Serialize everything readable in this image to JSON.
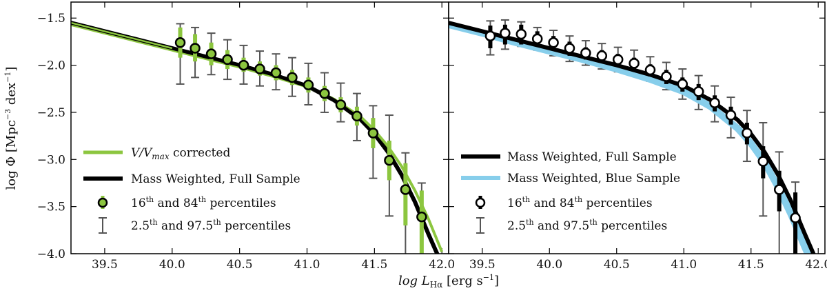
{
  "chart_data": [
    {
      "type": "line",
      "panel": "left",
      "xlabel": "log L_Hα [erg s^-1]",
      "ylabel": "log Φ [Mpc^-3 dex^-1]",
      "xlim": [
        39.25,
        42.05
      ],
      "ylim": [
        -4.0,
        -1.33
      ],
      "xticks": [
        39.5,
        40.0,
        40.5,
        41.0,
        41.5,
        42.0
      ],
      "xtick_labels": [
        "39.5",
        "40.0",
        "40.5",
        "41.0",
        "41.5",
        "42.0"
      ],
      "yticks": [
        -1.5,
        -2.0,
        -2.5,
        -3.0,
        -3.5,
        -4.0
      ],
      "ytick_labels": [
        "−1.5",
        "−2.0",
        "−2.5",
        "−3.0",
        "−3.5",
        "−4.0"
      ],
      "legend_position": "lower-left",
      "series": [
        {
          "name": "V/V_max corrected",
          "style": "line",
          "color": "#8CC63F",
          "x": [
            39.25,
            39.5,
            39.75,
            40.0,
            40.25,
            40.5,
            40.75,
            41.0,
            41.2,
            41.4,
            41.5,
            41.6,
            41.7,
            41.8,
            41.9,
            42.0
          ],
          "y": [
            -1.57,
            -1.66,
            -1.75,
            -1.84,
            -1.93,
            -2.02,
            -2.12,
            -2.23,
            -2.36,
            -2.55,
            -2.69,
            -2.86,
            -3.07,
            -3.33,
            -3.63,
            -3.98
          ]
        },
        {
          "name": "Mass Weighted, Full Sample",
          "style": "line",
          "color": "#000000",
          "x": [
            39.25,
            39.5,
            39.75,
            40.0,
            40.25,
            40.5,
            40.75,
            41.0,
            41.2,
            41.4,
            41.5,
            41.6,
            41.7,
            41.8,
            41.9,
            41.98
          ],
          "y": [
            -1.55,
            -1.64,
            -1.73,
            -1.82,
            -1.91,
            -2.0,
            -2.1,
            -2.22,
            -2.37,
            -2.58,
            -2.73,
            -2.92,
            -3.16,
            -3.45,
            -3.79,
            -4.05
          ]
        },
        {
          "name": "16th and 84th percentiles",
          "style": "points",
          "color": "#8CC63F",
          "x": [
            40.06,
            40.17,
            40.29,
            40.41,
            40.53,
            40.65,
            40.77,
            40.89,
            41.01,
            41.13,
            41.25,
            41.37,
            41.49,
            41.61,
            41.73,
            41.85
          ],
          "y": [
            -1.76,
            -1.82,
            -1.88,
            -1.94,
            -2.0,
            -2.04,
            -2.08,
            -2.13,
            -2.21,
            -2.3,
            -2.42,
            -2.54,
            -2.72,
            -3.01,
            -3.32,
            -3.61
          ],
          "err16": [
            -1.92,
            -1.96,
            -2.0,
            -2.04,
            -2.07,
            -2.11,
            -2.16,
            -2.21,
            -2.29,
            -2.38,
            -2.5,
            -2.64,
            -2.88,
            -3.22,
            -3.7,
            -4.0
          ],
          "err84": [
            -1.6,
            -1.67,
            -1.76,
            -1.84,
            -1.92,
            -1.96,
            -2.0,
            -2.05,
            -2.13,
            -2.22,
            -2.34,
            -2.44,
            -2.56,
            -2.8,
            -3.04,
            -3.33
          ]
        },
        {
          "name": "2.5th and 97.5th percentiles",
          "style": "errorbars",
          "color": "#555555",
          "x": [
            40.06,
            40.17,
            40.29,
            40.41,
            40.53,
            40.65,
            40.77,
            40.89,
            41.01,
            41.13,
            41.25,
            41.37,
            41.49,
            41.61,
            41.73,
            41.85
          ],
          "low": [
            -2.2,
            -2.13,
            -2.1,
            -2.15,
            -2.2,
            -2.22,
            -2.26,
            -2.33,
            -2.42,
            -2.5,
            -2.6,
            -2.8,
            -3.2,
            -3.6,
            -4.0,
            -4.0
          ],
          "high": [
            -1.56,
            -1.6,
            -1.66,
            -1.73,
            -1.79,
            -1.85,
            -1.88,
            -1.92,
            -1.98,
            -2.08,
            -2.19,
            -2.3,
            -2.43,
            -2.53,
            -2.93,
            -3.25
          ]
        }
      ]
    },
    {
      "type": "line",
      "panel": "right",
      "xlabel": "log L_Hα [erg s^-1]",
      "xlim": [
        39.25,
        42.05
      ],
      "ylim": [
        -4.0,
        -1.33
      ],
      "xticks": [
        39.5,
        40.0,
        40.5,
        41.0,
        41.5,
        42.0
      ],
      "xtick_labels": [
        "39.5",
        "40.0",
        "40.5",
        "41.0",
        "41.5",
        "42.0"
      ],
      "yticks": [
        -1.5,
        -2.0,
        -2.5,
        -3.0,
        -3.5,
        -4.0
      ],
      "legend_position": "lower-left",
      "series": [
        {
          "name": "Mass Weighted, Full Sample",
          "style": "line",
          "color": "#000000",
          "x": [
            39.25,
            39.5,
            39.75,
            40.0,
            40.25,
            40.5,
            40.75,
            41.0,
            41.2,
            41.4,
            41.5,
            41.6,
            41.7,
            41.8,
            41.9,
            41.98
          ],
          "y": [
            -1.55,
            -1.64,
            -1.73,
            -1.82,
            -1.91,
            -2.0,
            -2.1,
            -2.22,
            -2.37,
            -2.58,
            -2.73,
            -2.92,
            -3.16,
            -3.45,
            -3.79,
            -4.05
          ]
        },
        {
          "name": "Mass Weighted, Blue Sample",
          "style": "line",
          "color": "#87CEEB",
          "x": [
            39.25,
            39.5,
            39.75,
            40.0,
            40.25,
            40.5,
            40.75,
            41.0,
            41.2,
            41.4,
            41.5,
            41.6,
            41.7,
            41.8,
            41.9,
            41.96
          ],
          "y": [
            -1.57,
            -1.66,
            -1.76,
            -1.85,
            -1.94,
            -2.04,
            -2.15,
            -2.28,
            -2.44,
            -2.67,
            -2.83,
            -3.03,
            -3.29,
            -3.59,
            -3.93,
            -4.12
          ]
        },
        {
          "name": "16th and 84th percentiles",
          "style": "points",
          "color": "#000000",
          "x": [
            39.56,
            39.67,
            39.79,
            39.91,
            40.03,
            40.15,
            40.27,
            40.39,
            40.51,
            40.63,
            40.75,
            40.87,
            40.99,
            41.11,
            41.23,
            41.35,
            41.47,
            41.59,
            41.71,
            41.83
          ],
          "y": [
            -1.69,
            -1.66,
            -1.67,
            -1.72,
            -1.76,
            -1.82,
            -1.87,
            -1.9,
            -1.94,
            -1.98,
            -2.05,
            -2.12,
            -2.2,
            -2.28,
            -2.4,
            -2.53,
            -2.72,
            -3.02,
            -3.32,
            -3.62
          ],
          "err16": [
            -1.82,
            -1.78,
            -1.78,
            -1.8,
            -1.84,
            -1.9,
            -1.94,
            -1.97,
            -2.01,
            -2.06,
            -2.12,
            -2.2,
            -2.28,
            -2.37,
            -2.49,
            -2.63,
            -2.84,
            -3.2,
            -3.55,
            -4.0
          ],
          "err84": [
            -1.58,
            -1.57,
            -1.57,
            -1.64,
            -1.69,
            -1.75,
            -1.81,
            -1.84,
            -1.88,
            -1.92,
            -1.99,
            -2.05,
            -2.13,
            -2.2,
            -2.32,
            -2.44,
            -2.61,
            -2.86,
            -3.12,
            -3.35
          ]
        },
        {
          "name": "2.5th and 97.5th percentiles",
          "style": "errorbars",
          "color": "#555555",
          "x": [
            39.56,
            39.67,
            39.79,
            39.91,
            40.03,
            40.15,
            40.27,
            40.39,
            40.51,
            40.63,
            40.75,
            40.87,
            40.99,
            41.11,
            41.23,
            41.35,
            41.47,
            41.59,
            41.71,
            41.83
          ],
          "low": [
            -1.89,
            -1.83,
            -1.8,
            -1.84,
            -1.9,
            -1.96,
            -2.0,
            -2.04,
            -2.07,
            -2.11,
            -2.17,
            -2.26,
            -2.36,
            -2.47,
            -2.6,
            -2.77,
            -3.02,
            -3.6,
            -4.0,
            -4.0
          ],
          "high": [
            -1.53,
            -1.52,
            -1.54,
            -1.6,
            -1.63,
            -1.69,
            -1.74,
            -1.77,
            -1.81,
            -1.84,
            -1.91,
            -1.97,
            -2.04,
            -2.11,
            -2.22,
            -2.34,
            -2.48,
            -2.61,
            -2.92,
            -3.24
          ]
        }
      ]
    }
  ],
  "legends": {
    "left": {
      "vmax_a": "V/V",
      "vmax_sub": "max",
      "vmax_b": " corrected",
      "full": "Mass Weighted,  Full Sample",
      "p16_a": "16",
      "p16_sup": "th",
      "p16_b": " and 84",
      "p16_sup2": "th",
      "p16_c": " percentiles",
      "p25_a": "2.5",
      "p25_sup": "th",
      "p25_b": " and 97.5",
      "p25_sup2": "th",
      "p25_c": " percentiles"
    },
    "right": {
      "full": "Mass Weighted,  Full Sample",
      "blue": "Mass Weighted,  Blue Sample",
      "p16_a": "16",
      "p16_sup": "th",
      "p16_b": " and 84",
      "p16_sup2": "th",
      "p16_c": " percentiles",
      "p25_a": "2.5",
      "p25_sup": "th",
      "p25_b": " and 97.5",
      "p25_sup2": "th",
      "p25_c": " percentiles"
    }
  },
  "axis_labels": {
    "x_main": "log L",
    "x_sub": "Hα",
    "x_units": " [erg s",
    "x_units_sup": "−1",
    "x_close": "]",
    "y_main": "log Φ [Mpc",
    "y_sup1": "−3",
    "y_mid": " dex",
    "y_sup2": "−1",
    "y_close": "]"
  }
}
